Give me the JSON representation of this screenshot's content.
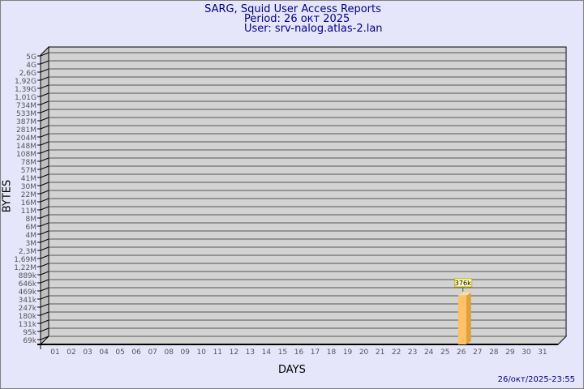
{
  "header": {
    "title": "SARG, Squid User Access Reports",
    "period": "Period: 26 окт 2025",
    "user": "User: srv-nalog.atlas-2.lan"
  },
  "footer": {
    "timestamp": "26/окт/2025-23:55"
  },
  "colors": {
    "background": "#e6e6fa",
    "title": "#000080",
    "plot": "#d3d3d3",
    "bar": "#ffc266",
    "bar_side": "#e0a040",
    "label_box": "#ffffc0"
  },
  "chart_data": {
    "type": "bar",
    "xlabel": "DAYS",
    "ylabel": "BYTES",
    "y_scale": "log",
    "grid": true,
    "y_ticks": [
      "5G",
      "4G",
      "2,6G",
      "1,92G",
      "1,39G",
      "1,01G",
      "734M",
      "533M",
      "387M",
      "281M",
      "204M",
      "148M",
      "108M",
      "78M",
      "57M",
      "41M",
      "30M",
      "22M",
      "16M",
      "11M",
      "8M",
      "6M",
      "4M",
      "3M",
      "2,3M",
      "1,69M",
      "1,22M",
      "889k",
      "646k",
      "469k",
      "341k",
      "247k",
      "180k",
      "131k",
      "95k",
      "69k"
    ],
    "y_tick_values": [
      5000000000.0,
      4000000000.0,
      2600000000.0,
      1920000000.0,
      1390000000.0,
      1010000000.0,
      734000000.0,
      533000000.0,
      387000000.0,
      281000000.0,
      204000000.0,
      148000000.0,
      108000000.0,
      78000000.0,
      57000000.0,
      41000000.0,
      30000000.0,
      22000000.0,
      16000000.0,
      11000000.0,
      8000000.0,
      6000000.0,
      4000000.0,
      3000000.0,
      2300000.0,
      1690000.0,
      1220000.0,
      889000.0,
      646000.0,
      469000.0,
      341000.0,
      247000.0,
      180000.0,
      131000.0,
      95000.0,
      69000.0
    ],
    "categories": [
      "01",
      "02",
      "03",
      "04",
      "05",
      "06",
      "07",
      "08",
      "09",
      "10",
      "11",
      "12",
      "13",
      "14",
      "15",
      "16",
      "17",
      "18",
      "19",
      "20",
      "21",
      "22",
      "23",
      "24",
      "25",
      "26",
      "27",
      "28",
      "29",
      "30",
      "31"
    ],
    "bars": [
      {
        "day": "26",
        "value": 376000,
        "label": "376k"
      }
    ]
  }
}
